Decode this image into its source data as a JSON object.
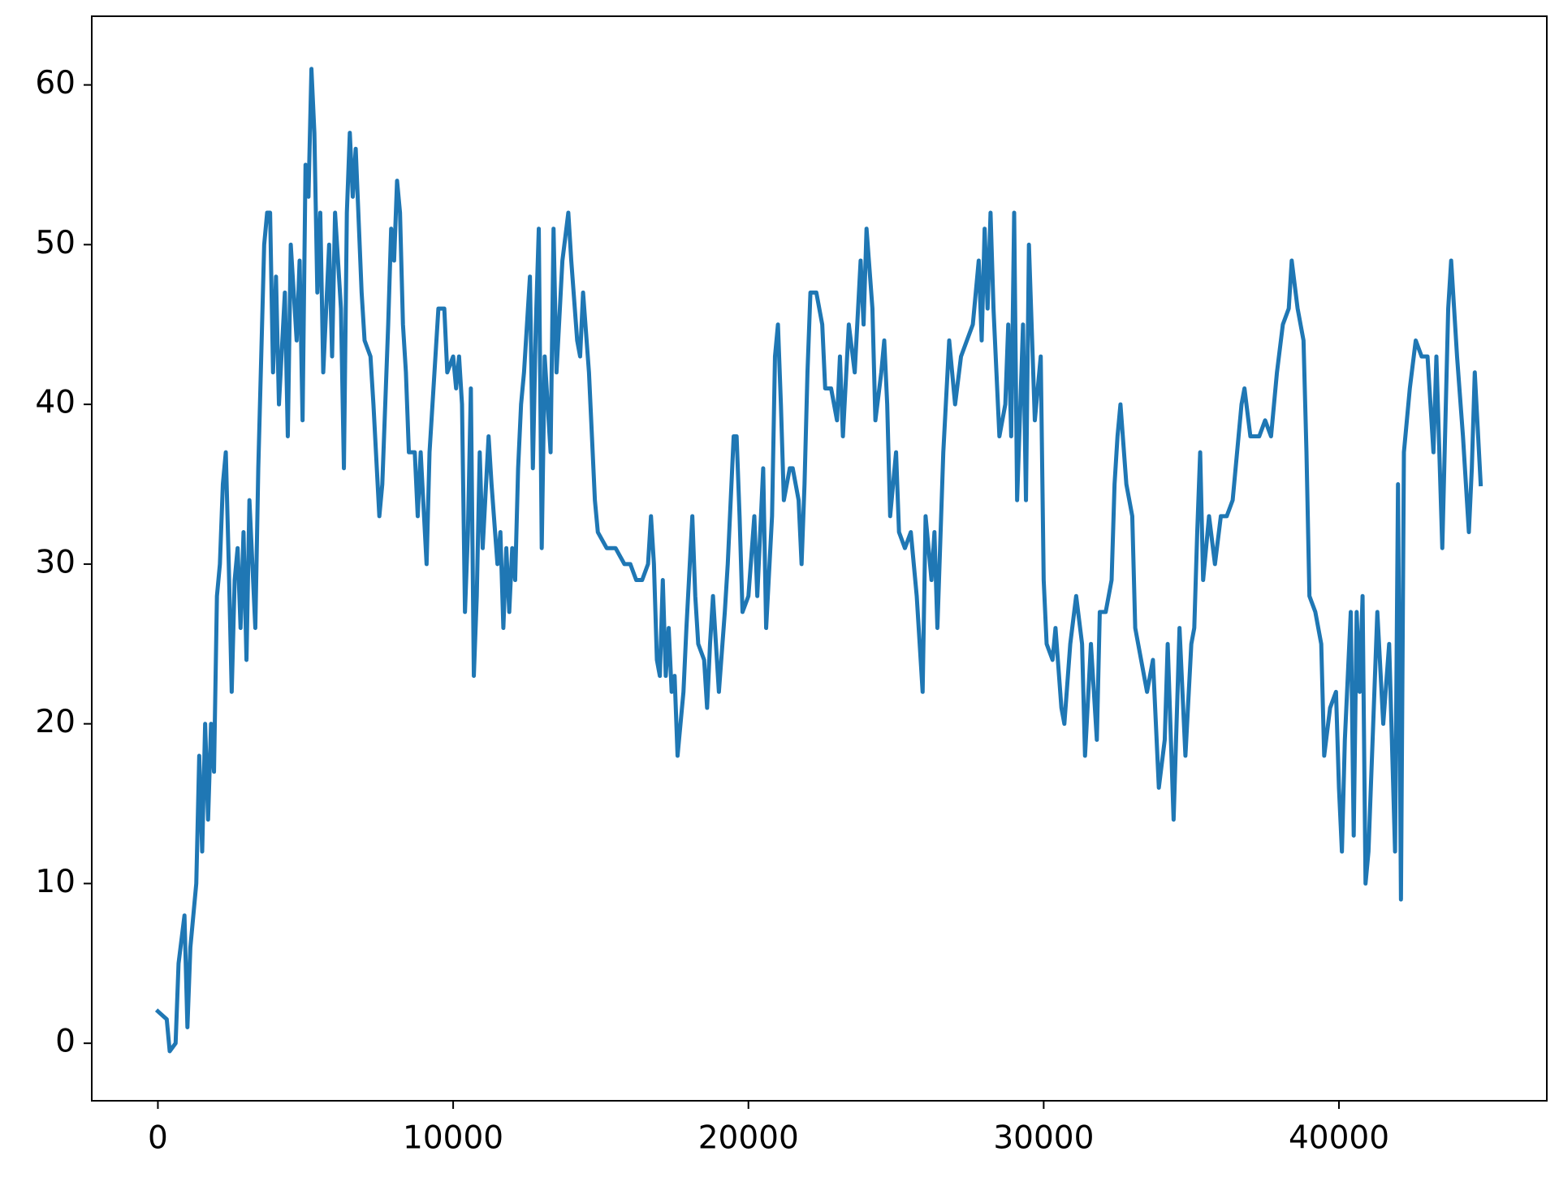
{
  "chart_data": {
    "type": "line",
    "x": [
      0,
      300,
      400,
      600,
      700,
      900,
      1000,
      1100,
      1300,
      1400,
      1500,
      1600,
      1700,
      1800,
      1900,
      2000,
      2100,
      2200,
      2300,
      2400,
      2500,
      2600,
      2700,
      2800,
      2900,
      3000,
      3100,
      3300,
      3400,
      3600,
      3700,
      3800,
      3900,
      4000,
      4100,
      4300,
      4400,
      4500,
      4700,
      4800,
      4900,
      5000,
      5100,
      5200,
      5300,
      5400,
      5500,
      5600,
      5800,
      5900,
      6000,
      6200,
      6300,
      6400,
      6500,
      6600,
      6700,
      6900,
      7000,
      7200,
      7300,
      7500,
      7600,
      7800,
      7900,
      8000,
      8100,
      8200,
      8300,
      8400,
      8500,
      8700,
      8800,
      8900,
      9100,
      9200,
      9400,
      9500,
      9700,
      9800,
      10000,
      10100,
      10200,
      10300,
      10400,
      10500,
      10600,
      10700,
      10800,
      10900,
      11000,
      11200,
      11300,
      11500,
      11600,
      11700,
      11800,
      11900,
      12000,
      12100,
      12200,
      12300,
      12400,
      12600,
      12700,
      12800,
      12900,
      13000,
      13100,
      13300,
      13400,
      13500,
      13700,
      13900,
      14000,
      14200,
      14300,
      14400,
      14600,
      14700,
      14800,
      14900,
      15200,
      15500,
      15800,
      16000,
      16200,
      16400,
      16600,
      16700,
      16800,
      16900,
      17000,
      17100,
      17200,
      17300,
      17400,
      17500,
      17600,
      17800,
      17900,
      18100,
      18200,
      18300,
      18500,
      18600,
      18700,
      18800,
      19000,
      19200,
      19300,
      19500,
      19600,
      19700,
      19800,
      20000,
      20200,
      20300,
      20500,
      20600,
      20800,
      20900,
      21000,
      21100,
      21200,
      21400,
      21500,
      21700,
      21800,
      21900,
      22000,
      22100,
      22300,
      22500,
      22600,
      22800,
      23000,
      23100,
      23200,
      23400,
      23600,
      23800,
      23900,
      24000,
      24200,
      24300,
      24500,
      24600,
      24700,
      24800,
      25000,
      25100,
      25300,
      25500,
      25700,
      25800,
      25900,
      26000,
      26200,
      26300,
      26400,
      26600,
      26800,
      27000,
      27200,
      27400,
      27600,
      27800,
      27900,
      28000,
      28100,
      28200,
      28300,
      28400,
      28500,
      28700,
      28800,
      28900,
      29000,
      29100,
      29300,
      29400,
      29500,
      29700,
      29900,
      30000,
      30100,
      30300,
      30400,
      30600,
      30700,
      30900,
      31100,
      31300,
      31400,
      31600,
      31800,
      31900,
      32100,
      32300,
      32400,
      32500,
      32600,
      32800,
      33000,
      33100,
      33300,
      33500,
      33700,
      33900,
      34100,
      34200,
      34400,
      34600,
      34800,
      35000,
      35100,
      35200,
      35300,
      35400,
      35600,
      35800,
      36000,
      36200,
      36400,
      36600,
      36700,
      36800,
      37000,
      37300,
      37500,
      37700,
      37900,
      38100,
      38300,
      38400,
      38600,
      38800,
      38900,
      39000,
      39200,
      39400,
      39500,
      39700,
      39900,
      40000,
      40100,
      40200,
      40400,
      40500,
      40600,
      40700,
      40800,
      40900,
      41000,
      41200,
      41300,
      41500,
      41700,
      41900,
      42000,
      42100,
      42200,
      42400,
      42600,
      42800,
      43000,
      43200,
      43300,
      43500,
      43700,
      43800,
      44000,
      44200,
      44400,
      44500,
      44600,
      44800
    ],
    "values": [
      2,
      1.5,
      -0.5,
      0,
      5,
      8,
      1,
      6,
      10,
      18,
      12,
      20,
      14,
      20,
      17,
      28,
      30,
      35,
      37,
      30,
      22,
      29,
      31,
      26,
      32,
      24,
      34,
      26,
      36,
      50,
      52,
      52,
      42,
      48,
      40,
      47,
      38,
      50,
      44,
      49,
      39,
      55,
      53,
      61,
      57,
      47,
      52,
      42,
      50,
      43,
      52,
      46,
      36,
      52,
      57,
      53,
      56,
      47,
      44,
      43,
      40,
      33,
      35,
      45,
      51,
      49,
      54,
      52,
      45,
      42,
      37,
      37,
      33,
      37,
      30,
      37,
      43,
      46,
      46,
      42,
      43,
      41,
      43,
      40,
      27,
      32,
      41,
      23,
      28,
      37,
      31,
      38,
      35,
      30,
      32,
      26,
      31,
      27,
      31,
      29,
      36,
      40,
      42,
      48,
      36,
      45,
      51,
      31,
      43,
      37,
      51,
      42,
      49,
      52,
      49,
      44,
      43,
      47,
      42,
      38,
      34,
      32,
      31,
      31,
      30,
      30,
      29,
      29,
      30,
      33,
      30,
      24,
      23,
      29,
      23,
      26,
      22,
      23,
      18,
      22,
      26,
      33,
      28,
      25,
      24,
      21,
      25,
      28,
      22,
      27,
      30,
      38,
      38,
      33,
      27,
      28,
      33,
      28,
      36,
      26,
      33,
      43,
      45,
      40,
      34,
      36,
      36,
      34,
      30,
      35,
      42,
      47,
      47,
      45,
      41,
      41,
      39,
      43,
      38,
      45,
      42,
      49,
      45,
      51,
      46,
      39,
      42,
      44,
      40,
      33,
      37,
      32,
      31,
      32,
      28,
      25,
      22,
      33,
      29,
      32,
      26,
      37,
      44,
      40,
      43,
      44,
      45,
      49,
      44,
      51,
      46,
      52,
      46,
      42,
      38,
      40,
      45,
      38,
      52,
      34,
      45,
      34,
      50,
      39,
      43,
      29,
      25,
      24,
      26,
      21,
      20,
      25,
      28,
      25,
      18,
      25,
      19,
      27,
      27,
      29,
      35,
      38,
      40,
      35,
      33,
      26,
      24,
      22,
      24,
      16,
      19,
      25,
      14,
      26,
      18,
      25,
      26,
      32,
      37,
      29,
      33,
      30,
      33,
      33,
      34,
      38,
      40,
      41,
      38,
      38,
      39,
      38,
      42,
      45,
      46,
      49,
      46,
      44,
      37,
      28,
      27,
      25,
      18,
      21,
      22,
      16,
      12,
      19,
      27,
      13,
      27,
      22,
      28,
      10,
      12,
      22,
      27,
      20,
      25,
      12,
      35,
      9,
      37,
      41,
      44,
      43,
      43,
      37,
      43,
      31,
      46,
      49,
      43,
      38,
      32,
      36,
      42,
      35
    ],
    "color": "#1f77b4",
    "xlim": [
      -2240,
      47040
    ],
    "xticks": [
      0,
      10000,
      20000,
      30000,
      40000
    ],
    "ylim": [
      -3.6,
      64.3
    ],
    "yticks": [
      0,
      10,
      20,
      30,
      40,
      50,
      60
    ],
    "grid": false
  }
}
